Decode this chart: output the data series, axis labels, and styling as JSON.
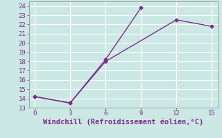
{
  "line1_x": [
    0,
    3,
    6,
    9
  ],
  "line1_y": [
    14.2,
    13.5,
    18.2,
    23.8
  ],
  "line2_x": [
    0,
    3,
    6,
    12,
    15
  ],
  "line2_y": [
    14.2,
    13.5,
    18.0,
    22.5,
    21.8
  ],
  "color": "#7B2D8B",
  "bg_color": "#cce8e4",
  "grid_color": "#ffffff",
  "xlabel": "Windchill (Refroidissement éolien,°C)",
  "xlim": [
    -0.5,
    15.5
  ],
  "ylim": [
    13,
    24.5
  ],
  "xticks": [
    0,
    3,
    6,
    9,
    12,
    15
  ],
  "yticks": [
    13,
    14,
    15,
    16,
    17,
    18,
    19,
    20,
    21,
    22,
    23,
    24
  ],
  "marker": "D",
  "markersize": 2.5,
  "linewidth": 1.0,
  "xlabel_fontsize": 7.5,
  "tick_fontsize": 6.5
}
